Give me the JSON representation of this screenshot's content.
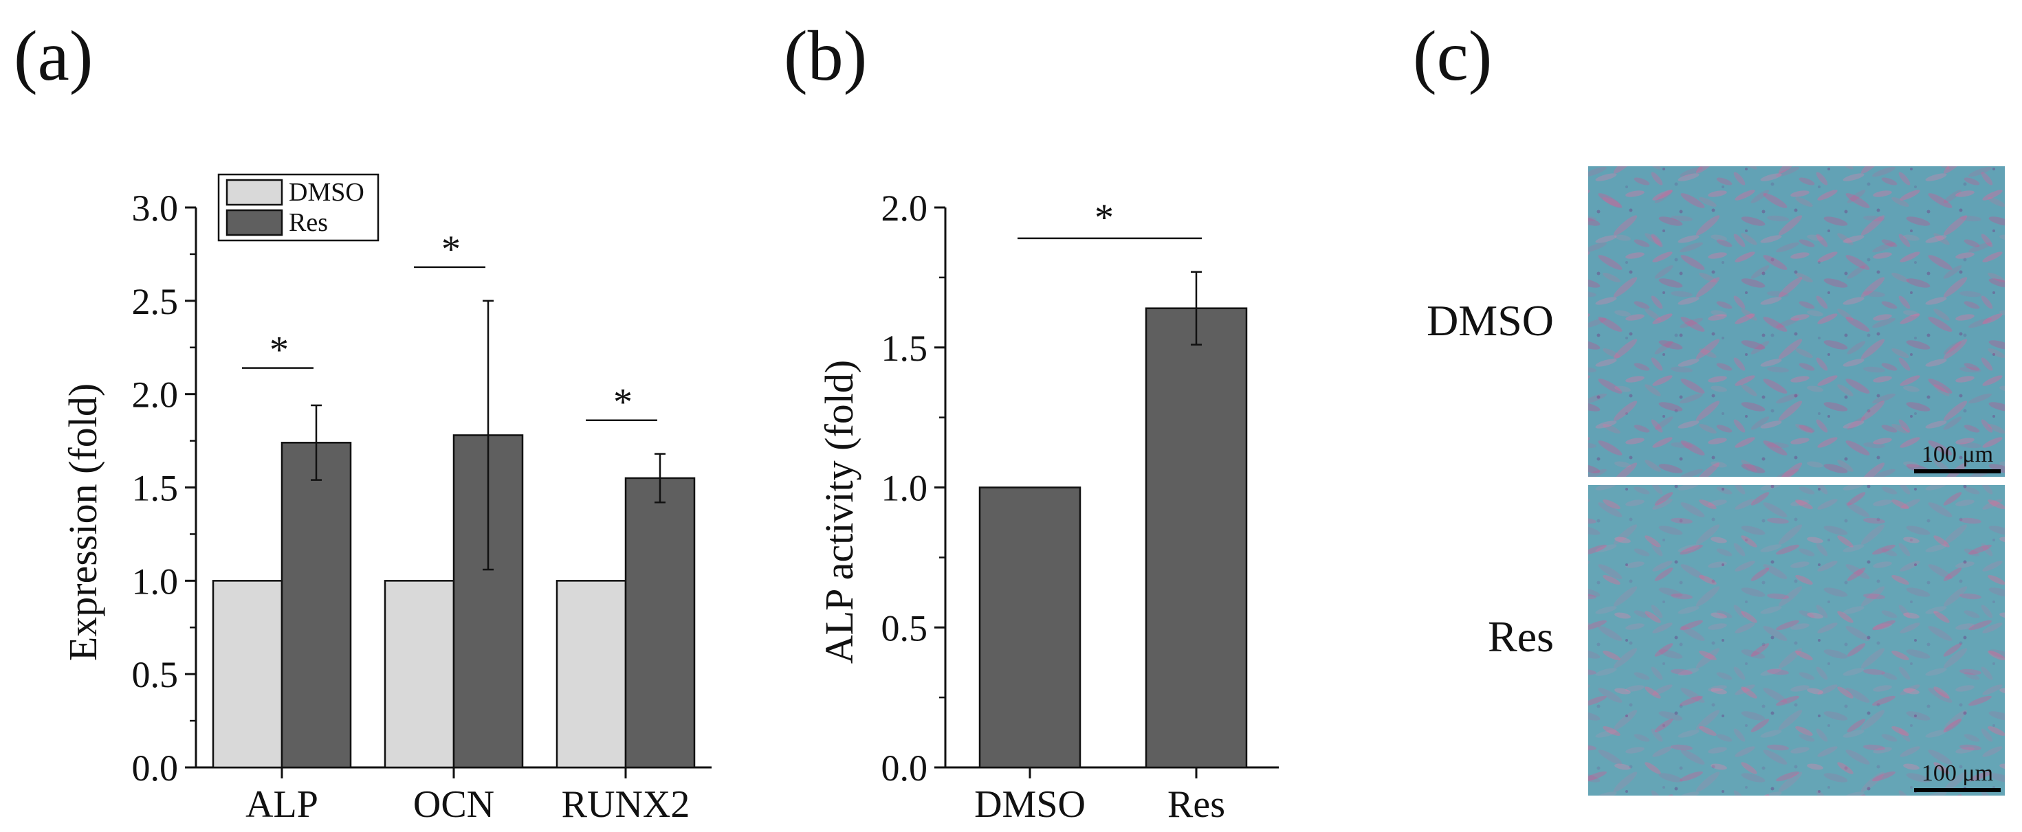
{
  "panels": {
    "a": "(a)",
    "b": "(b)",
    "c": "(c)"
  },
  "colors": {
    "dmso": "#d9d9d9",
    "res": "#5f5f5f",
    "axis": "#111111",
    "stain_bg": "#5f9fb3",
    "stain_cell": "#c56f9e"
  },
  "chart_data": [
    {
      "type": "bar",
      "panel": "a",
      "title": "",
      "xlabel": "",
      "ylabel": "Expression (fold)",
      "ylim": [
        0,
        3.0
      ],
      "yticks": [
        0.0,
        0.5,
        1.0,
        1.5,
        2.0,
        2.5,
        3.0
      ],
      "ytick_labels": [
        "0.0",
        "0.5",
        "1.0",
        "1.5",
        "2.0",
        "2.5",
        "3.0"
      ],
      "categories": [
        "ALP",
        "OCN",
        "RUNX2"
      ],
      "series": [
        {
          "name": "DMSO",
          "values": [
            1.0,
            1.0,
            1.0
          ],
          "errors": [
            0,
            0,
            0
          ]
        },
        {
          "name": "Res",
          "values": [
            1.74,
            1.78,
            1.55
          ],
          "errors": [
            0.2,
            0.72,
            0.13
          ]
        }
      ],
      "significance": [
        {
          "category": "ALP",
          "label": "*",
          "level": 2.14
        },
        {
          "category": "OCN",
          "label": "*",
          "level": 2.68
        },
        {
          "category": "RUNX2",
          "label": "*",
          "level": 1.86
        }
      ],
      "legend": {
        "position": "top-left",
        "entries": [
          "DMSO",
          "Res"
        ]
      }
    },
    {
      "type": "bar",
      "panel": "b",
      "title": "",
      "xlabel": "",
      "ylabel": "ALP activity (fold)",
      "ylim": [
        0,
        2.0
      ],
      "yticks": [
        0.0,
        0.5,
        1.0,
        1.5,
        2.0
      ],
      "ytick_labels": [
        "0.0",
        "0.5",
        "1.0",
        "1.5",
        "2.0"
      ],
      "categories": [
        "DMSO",
        "Res"
      ],
      "series": [
        {
          "name": "ALP activity",
          "values": [
            1.0,
            1.64
          ],
          "errors": [
            0,
            0.13
          ]
        }
      ],
      "significance": [
        {
          "from": "DMSO",
          "to": "Res",
          "label": "*",
          "level": 1.89
        }
      ]
    }
  ],
  "micrographs": [
    {
      "label": "DMSO",
      "scale": "100 μm"
    },
    {
      "label": "Res",
      "scale": "100 μm"
    }
  ]
}
